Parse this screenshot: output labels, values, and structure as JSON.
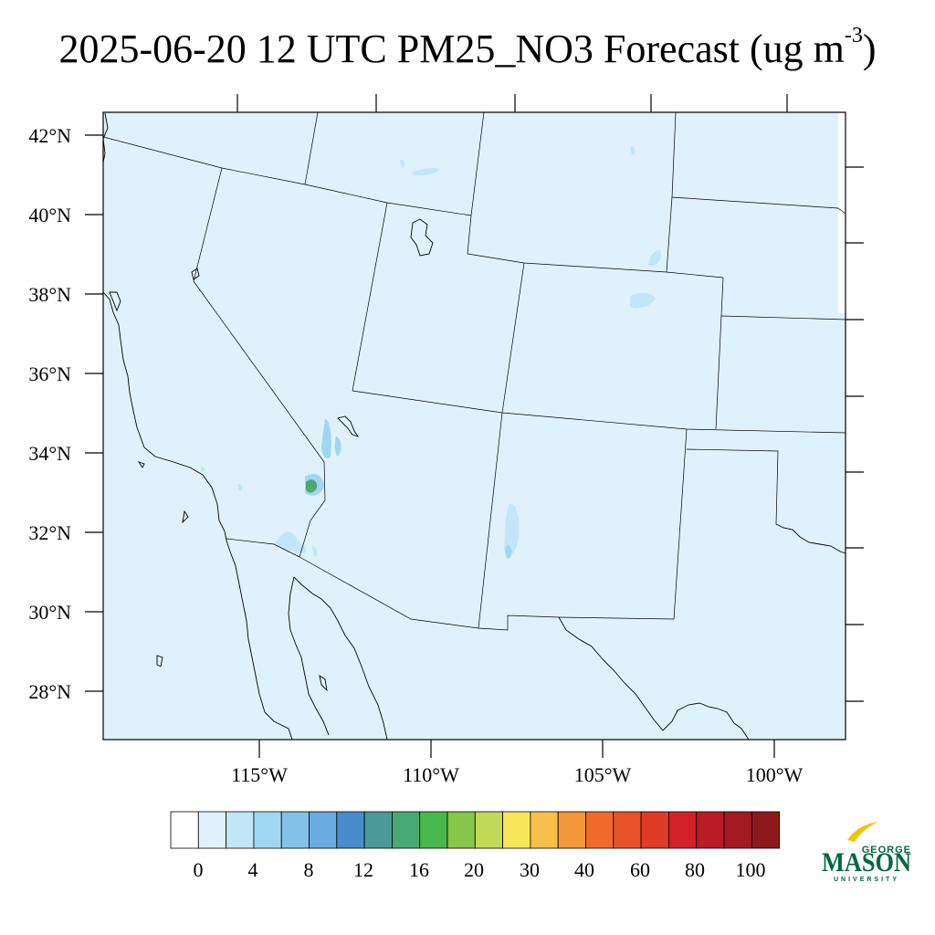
{
  "title": {
    "prefix": "2025-06-20 12 UTC PM25_NO3 Forecast (ug m",
    "superscript": "-3",
    "suffix": ")"
  },
  "map": {
    "background_color": "#dff2fb",
    "lat_labels": [
      "42°N",
      "40°N",
      "38°N",
      "36°N",
      "34°N",
      "32°N",
      "30°N",
      "28°N"
    ],
    "lon_labels": [
      "115°W",
      "110°W",
      "105°W",
      "100°W"
    ]
  },
  "colorbar": {
    "colors": [
      "#ffffff",
      "#dff2fb",
      "#c0e6f7",
      "#9fd6f2",
      "#84c1e8",
      "#6aaade",
      "#4a8ccb",
      "#4a9a9a",
      "#4aa872",
      "#48b84a",
      "#85c64b",
      "#c2d857",
      "#f7e55a",
      "#f6be4a",
      "#f4973a",
      "#f26a2b",
      "#e9522a",
      "#e03a29",
      "#d42129",
      "#b91c26",
      "#a31a22",
      "#8c1a1c"
    ],
    "tick_labels": [
      "0",
      "4",
      "8",
      "12",
      "16",
      "20",
      "30",
      "40",
      "60",
      "80",
      "100"
    ]
  },
  "logo": {
    "top": "GEORGE",
    "main": "MASON",
    "bottom": "UNIVERSITY",
    "color": "#00693e",
    "accent": "#f3c300"
  }
}
